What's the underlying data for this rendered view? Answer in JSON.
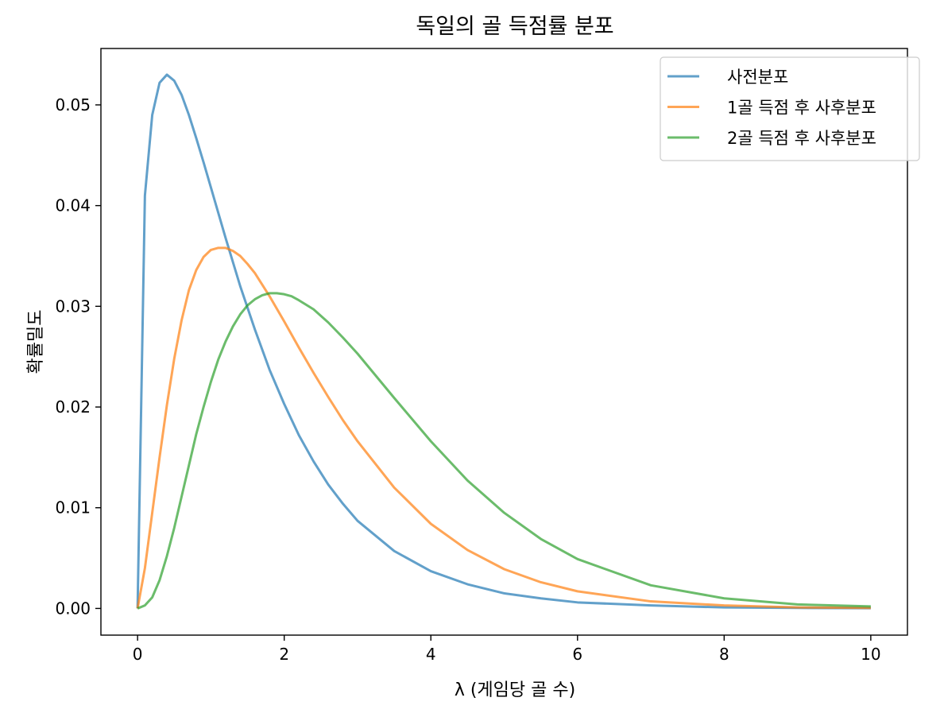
{
  "chart_data": {
    "type": "line",
    "title": "독일의 골 득점률 분포",
    "xlabel": "λ (게임당 골 수)",
    "ylabel": "확률밀도",
    "xlim": [
      -0.5,
      10.5
    ],
    "ylim": [
      -0.00265,
      0.0556
    ],
    "xticks": [
      0,
      2,
      4,
      6,
      8,
      10
    ],
    "xtick_labels": [
      "0",
      "2",
      "4",
      "6",
      "8",
      "10"
    ],
    "yticks": [
      0.0,
      0.01,
      0.02,
      0.03,
      0.04,
      0.05
    ],
    "ytick_labels": [
      "0.00",
      "0.01",
      "0.02",
      "0.03",
      "0.04",
      "0.05"
    ],
    "grid": false,
    "legend_position": "top-right",
    "series": [
      {
        "name": "사전분포",
        "color": "#1f77b4",
        "x": [
          0,
          0.1,
          0.2,
          0.3,
          0.4,
          0.5,
          0.6,
          0.7,
          0.8,
          0.9,
          1.0,
          1.2,
          1.4,
          1.6,
          1.8,
          2.0,
          2.2,
          2.4,
          2.6,
          2.8,
          3.0,
          3.5,
          4.0,
          4.5,
          5.0,
          5.5,
          6.0,
          7.0,
          8.0,
          9.0,
          10.0
        ],
        "values": [
          0.0,
          0.041,
          0.049,
          0.0522,
          0.053,
          0.0524,
          0.051,
          0.049,
          0.0467,
          0.0443,
          0.0418,
          0.0368,
          0.032,
          0.0277,
          0.0237,
          0.0203,
          0.0172,
          0.0146,
          0.0123,
          0.0104,
          0.0087,
          0.0057,
          0.0037,
          0.0024,
          0.0015,
          0.001,
          0.0006,
          0.0003,
          0.0001,
          5e-05,
          2e-05
        ]
      },
      {
        "name": "1골 득점 후 사후분포",
        "color": "#ff7f0e",
        "x": [
          0,
          0.1,
          0.2,
          0.3,
          0.4,
          0.5,
          0.6,
          0.7,
          0.8,
          0.9,
          1.0,
          1.1,
          1.2,
          1.3,
          1.4,
          1.5,
          1.6,
          1.8,
          2.0,
          2.2,
          2.4,
          2.6,
          2.8,
          3.0,
          3.5,
          4.0,
          4.5,
          5.0,
          5.5,
          6.0,
          7.0,
          8.0,
          9.0,
          10.0
        ],
        "values": [
          0.0,
          0.004,
          0.0095,
          0.015,
          0.0202,
          0.0248,
          0.0286,
          0.0316,
          0.0336,
          0.0349,
          0.0356,
          0.0358,
          0.0358,
          0.0355,
          0.035,
          0.0342,
          0.0333,
          0.031,
          0.0285,
          0.0259,
          0.0234,
          0.021,
          0.0187,
          0.0166,
          0.012,
          0.0084,
          0.0058,
          0.0039,
          0.0026,
          0.0017,
          0.0007,
          0.0003,
          0.0001,
          5e-05
        ]
      },
      {
        "name": "2골 득점 후 사후분포",
        "color": "#2ca02c",
        "x": [
          0,
          0.1,
          0.2,
          0.3,
          0.4,
          0.5,
          0.6,
          0.7,
          0.8,
          0.9,
          1.0,
          1.1,
          1.2,
          1.3,
          1.4,
          1.5,
          1.6,
          1.7,
          1.8,
          1.9,
          2.0,
          2.1,
          2.2,
          2.4,
          2.6,
          2.8,
          3.0,
          3.5,
          4.0,
          4.5,
          5.0,
          5.5,
          6.0,
          7.0,
          8.0,
          9.0,
          10.0
        ],
        "values": [
          0.0,
          0.0003,
          0.0011,
          0.0028,
          0.0052,
          0.008,
          0.0111,
          0.0142,
          0.0173,
          0.02,
          0.0225,
          0.0247,
          0.0265,
          0.028,
          0.0292,
          0.0301,
          0.0307,
          0.0311,
          0.0313,
          0.0313,
          0.0312,
          0.031,
          0.0306,
          0.0297,
          0.0284,
          0.0269,
          0.0253,
          0.0209,
          0.0166,
          0.0127,
          0.0095,
          0.0069,
          0.0049,
          0.0023,
          0.001,
          0.0004,
          0.0002
        ]
      }
    ]
  }
}
